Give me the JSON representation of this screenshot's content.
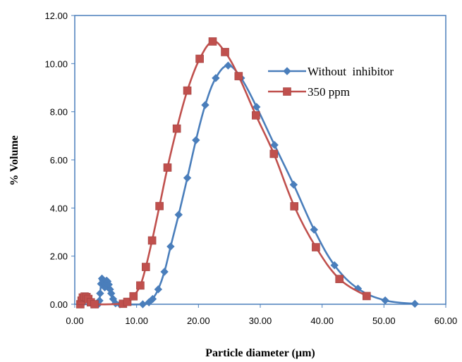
{
  "chart_data": {
    "type": "line",
    "title": "",
    "xlabel": "Particle diameter (µm)",
    "ylabel": "% Volume",
    "xlim": [
      0,
      60
    ],
    "ylim": [
      0,
      12
    ],
    "x_ticks": [
      "0.00",
      "10.00",
      "20.00",
      "30.00",
      "40.00",
      "50.00",
      "60.00"
    ],
    "y_ticks": [
      "0.00",
      "2.00",
      "4.00",
      "6.00",
      "8.00",
      "10.00",
      "12.00"
    ],
    "grid": false,
    "legend_position": "upper-right inside",
    "series": [
      {
        "name": "Without  inhibitor",
        "color": "#4a7ebb",
        "marker": "diamond",
        "points": [
          [
            0.9,
            0.0
          ],
          [
            1.1,
            0.0
          ],
          [
            2.8,
            0.0
          ],
          [
            3.4,
            0.0
          ],
          [
            3.8,
            0.0
          ],
          [
            4.0,
            0.15
          ],
          [
            4.1,
            0.45
          ],
          [
            4.25,
            0.85
          ],
          [
            4.4,
            1.07
          ],
          [
            4.55,
            1.0
          ],
          [
            4.7,
            0.85
          ],
          [
            4.85,
            0.7
          ],
          [
            5.0,
            0.85
          ],
          [
            5.15,
            0.98
          ],
          [
            5.3,
            0.95
          ],
          [
            5.5,
            0.82
          ],
          [
            5.7,
            0.62
          ],
          [
            5.9,
            0.45
          ],
          [
            6.2,
            0.22
          ],
          [
            6.6,
            0.04
          ],
          [
            7.3,
            0.0
          ],
          [
            11.0,
            0.0
          ],
          [
            12.0,
            0.08
          ],
          [
            12.6,
            0.22
          ],
          [
            13.5,
            0.62
          ],
          [
            14.5,
            1.35
          ],
          [
            15.5,
            2.4
          ],
          [
            16.8,
            3.72
          ],
          [
            18.2,
            5.25
          ],
          [
            19.6,
            6.82
          ],
          [
            21.1,
            8.28
          ],
          [
            22.8,
            9.4
          ],
          [
            24.8,
            9.92
          ],
          [
            26.9,
            9.4
          ],
          [
            29.4,
            8.2
          ],
          [
            32.3,
            6.62
          ],
          [
            35.4,
            4.97
          ],
          [
            38.7,
            3.1
          ],
          [
            42.0,
            1.62
          ],
          [
            45.8,
            0.65
          ],
          [
            50.2,
            0.16
          ],
          [
            55.0,
            0.02
          ]
        ]
      },
      {
        "name": "350 ppm",
        "color": "#c0504d",
        "marker": "square",
        "points": [
          [
            0.9,
            0.0
          ],
          [
            1.1,
            0.15
          ],
          [
            1.3,
            0.28
          ],
          [
            1.6,
            0.32
          ],
          [
            1.9,
            0.3
          ],
          [
            2.2,
            0.22
          ],
          [
            2.6,
            0.08
          ],
          [
            3.2,
            0.0
          ],
          [
            7.8,
            0.02
          ],
          [
            8.5,
            0.1
          ],
          [
            9.5,
            0.33
          ],
          [
            10.6,
            0.78
          ],
          [
            11.5,
            1.55
          ],
          [
            12.5,
            2.65
          ],
          [
            13.7,
            4.08
          ],
          [
            15.0,
            5.68
          ],
          [
            16.5,
            7.3
          ],
          [
            18.2,
            8.88
          ],
          [
            20.2,
            10.2
          ],
          [
            22.3,
            10.92
          ],
          [
            24.3,
            10.48
          ],
          [
            26.5,
            9.48
          ],
          [
            29.3,
            7.85
          ],
          [
            32.2,
            6.25
          ],
          [
            35.5,
            4.07
          ],
          [
            39.0,
            2.37
          ],
          [
            42.8,
            1.05
          ],
          [
            47.2,
            0.34
          ]
        ]
      }
    ]
  }
}
